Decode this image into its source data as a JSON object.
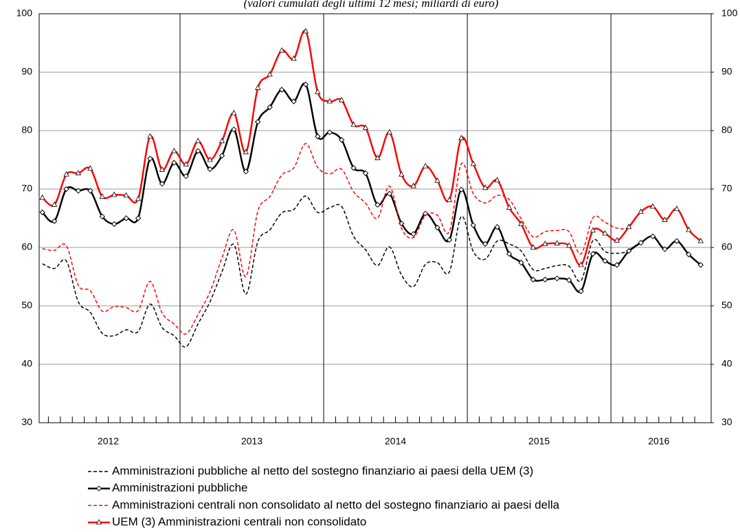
{
  "chart_data": {
    "type": "line",
    "subtitle": "(valori cumulati degli ultimi 12 mesi; miliardi di euro)",
    "categories": [
      "2012",
      null,
      null,
      null,
      null,
      null,
      null,
      null,
      null,
      null,
      null,
      null,
      "2013",
      null,
      null,
      null,
      null,
      null,
      null,
      null,
      null,
      null,
      null,
      null,
      "2014",
      null,
      null,
      null,
      null,
      null,
      null,
      null,
      null,
      null,
      null,
      null,
      "2015",
      null,
      null,
      null,
      null,
      null,
      null,
      null,
      null,
      null,
      null,
      null,
      "2016",
      null,
      null,
      null,
      null,
      null,
      null,
      null
    ],
    "ylim": [
      30,
      100
    ],
    "yticks": [
      30,
      40,
      50,
      60,
      70,
      80,
      90,
      100
    ],
    "y2lim": [
      30,
      100
    ],
    "y2ticks": [
      30,
      40,
      50,
      60,
      70,
      80,
      90,
      100
    ],
    "grid": true,
    "series": [
      {
        "name": "Amministrazioni pubbliche al netto del sostegno finanziario ai paesi della UEM (3)",
        "color": "#000000",
        "dash": true,
        "marker": null,
        "values": [
          57.2,
          56.4,
          57.7,
          50.7,
          48.9,
          45.3,
          44.9,
          45.9,
          45.6,
          50.3,
          46.3,
          44.9,
          43.0,
          46.9,
          50.7,
          55.8,
          60.5,
          52.0,
          61.0,
          63.0,
          65.9,
          66.5,
          68.8,
          66.0,
          66.8,
          67.0,
          61.9,
          59.6,
          56.9,
          60.1,
          55.3,
          53.3,
          57.1,
          57.4,
          55.8,
          65.3,
          59.3,
          58.0,
          61.1,
          60.6,
          59.4,
          56.2,
          56.4,
          56.9,
          56.8,
          54.3,
          61.2,
          59.3,
          59.0,
          59.4,
          60.8,
          61.9,
          59.7,
          61.1,
          58.8,
          57.0
        ]
      },
      {
        "name": "Amministrazioni pubbliche",
        "color": "#000000",
        "dash": false,
        "marker": "diamond",
        "values": [
          66.0,
          64.5,
          70.0,
          69.7,
          69.7,
          65.3,
          64.0,
          65.0,
          65.0,
          75.2,
          70.9,
          74.5,
          72.2,
          76.5,
          73.4,
          75.7,
          80.2,
          73.0,
          81.5,
          84.0,
          87.0,
          85.0,
          87.9,
          79.0,
          79.7,
          78.4,
          73.6,
          72.7,
          67.3,
          69.2,
          64.1,
          62.3,
          65.8,
          63.4,
          61.3,
          69.9,
          63.8,
          60.6,
          63.5,
          58.9,
          57.4,
          54.5,
          54.5,
          54.7,
          54.4,
          52.5,
          58.9,
          57.7,
          57.0,
          59.4,
          60.8,
          61.9,
          59.7,
          61.1,
          58.8,
          57.0
        ]
      },
      {
        "name": "Amministrazioni centrali non consolidato al netto del sostegno finanziario ai paesi della",
        "color": "#ff0000",
        "dash": true,
        "marker": null,
        "values": [
          59.8,
          59.5,
          60.3,
          53.5,
          52.6,
          49.1,
          49.9,
          49.7,
          49.2,
          54.2,
          48.8,
          46.9,
          45.2,
          48.5,
          52.4,
          58.2,
          63.0,
          55.0,
          66.2,
          68.7,
          72.4,
          73.6,
          77.8,
          73.7,
          72.6,
          73.4,
          69.5,
          67.6,
          65.0,
          70.5,
          63.3,
          61.7,
          65.5,
          65.5,
          62.7,
          74.3,
          69.2,
          67.6,
          68.9,
          68.2,
          64.9,
          61.8,
          62.7,
          62.9,
          62.7,
          58.9,
          65.1,
          64.3,
          63.3,
          63.5,
          66.1,
          67.0,
          64.7,
          66.6,
          63.0,
          61.1
        ]
      },
      {
        "name": "UEM (3) Amministrazioni centrali non consolidato",
        "color": "#ff0000",
        "dash": false,
        "marker": "triangle",
        "values": [
          68.5,
          67.3,
          72.5,
          72.7,
          73.5,
          68.7,
          69.0,
          68.9,
          68.3,
          79.0,
          73.3,
          76.5,
          74.2,
          78.2,
          75.0,
          78.2,
          83.0,
          76.3,
          87.3,
          89.6,
          93.7,
          92.3,
          97.0,
          86.6,
          85.0,
          85.2,
          81.0,
          80.5,
          75.3,
          79.7,
          72.5,
          70.5,
          73.9,
          71.4,
          68.1,
          78.7,
          74.3,
          70.2,
          71.5,
          66.8,
          64.0,
          60.0,
          60.6,
          60.7,
          60.3,
          57.0,
          62.9,
          62.4,
          61.2,
          63.5,
          66.1,
          67.0,
          64.7,
          66.6,
          63.0,
          61.1
        ]
      }
    ]
  }
}
